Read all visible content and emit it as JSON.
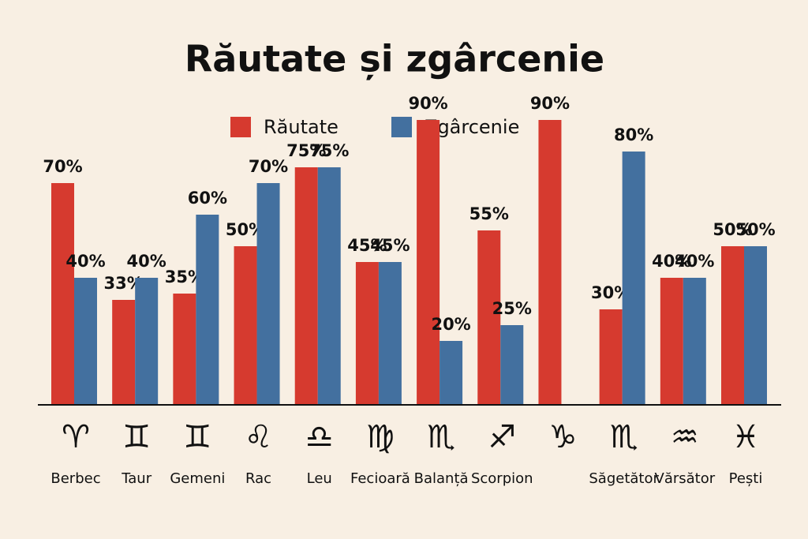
{
  "chart_data": {
    "type": "bar",
    "title": "Răutate și zgârcenie",
    "categories": [
      "Berbec",
      "Taur",
      "Gemeni",
      "Rac",
      "Leu",
      "Fecioară",
      "Balanță",
      "Scorpion",
      null,
      "Săgetător",
      "Vărsător",
      "Pești"
    ],
    "category_symbols": [
      "♈",
      "♊",
      "♊",
      "♌",
      "♎",
      "♍",
      "♏",
      "♐",
      "♑",
      "♏",
      "♒",
      "♓"
    ],
    "series": [
      {
        "name": "Răutate",
        "color": "#d63a2f",
        "values": [
          70,
          33,
          35,
          50,
          75,
          45,
          90,
          55,
          90,
          30,
          40,
          50
        ],
        "value_labels": [
          "70%",
          "33%",
          "35%",
          "50%",
          "75%",
          "45%",
          "90%",
          "55%",
          "90%",
          "30%",
          "40%",
          "50%"
        ]
      },
      {
        "name": "Zgârcenie",
        "color": "#43709f",
        "values": [
          40,
          40,
          60,
          70,
          75,
          45,
          20,
          25,
          null,
          80,
          40,
          50
        ],
        "value_labels": [
          "40%",
          "40%",
          "60%",
          "70%",
          "75%",
          "45%",
          "20%",
          "25%",
          null,
          "80%",
          "40%",
          "50%"
        ]
      }
    ]
  }
}
